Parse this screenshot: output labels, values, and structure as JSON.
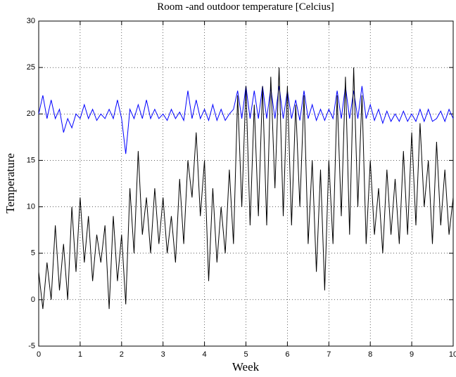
{
  "chart_data": {
    "type": "line",
    "title": "Room -and outdoor temperature [Celcius]",
    "x_label": "Week",
    "y_label": "Temperature",
    "x": [
      0,
      0.1,
      0.2,
      0.3,
      0.4,
      0.5,
      0.6,
      0.7,
      0.8,
      0.9,
      1,
      1.1,
      1.2,
      1.3,
      1.4,
      1.5,
      1.6,
      1.7,
      1.8,
      1.9,
      2,
      2.1,
      2.2,
      2.3,
      2.4,
      2.5,
      2.6,
      2.7,
      2.8,
      2.9,
      3,
      3.1,
      3.2,
      3.3,
      3.4,
      3.5,
      3.6,
      3.7,
      3.8,
      3.9,
      4,
      4.1,
      4.2,
      4.3,
      4.4,
      4.5,
      4.6,
      4.7,
      4.8,
      4.9,
      5,
      5.1,
      5.2,
      5.3,
      5.4,
      5.5,
      5.6,
      5.7,
      5.8,
      5.9,
      6,
      6.1,
      6.2,
      6.3,
      6.4,
      6.5,
      6.6,
      6.7,
      6.8,
      6.9,
      7,
      7.1,
      7.2,
      7.3,
      7.4,
      7.5,
      7.6,
      7.7,
      7.8,
      7.9,
      8,
      8.1,
      8.2,
      8.3,
      8.4,
      8.5,
      8.6,
      8.7,
      8.8,
      8.9,
      9,
      9.1,
      9.2,
      9.3,
      9.4,
      9.5,
      9.6,
      9.7,
      9.8,
      9.9,
      10
    ],
    "series": [
      {
        "color": "#0000ff",
        "values": [
          20,
          22,
          19.5,
          21.5,
          19.5,
          20.5,
          18,
          19.5,
          18.5,
          20,
          19.5,
          21,
          19.5,
          20.5,
          19.3,
          20,
          19.5,
          20.5,
          19.5,
          21.5,
          19.5,
          15.7,
          20.5,
          19.5,
          21,
          19.5,
          21.5,
          19.5,
          20.5,
          19.5,
          20,
          19.3,
          20.5,
          19.5,
          20.2,
          19.3,
          22.5,
          19.5,
          21.5,
          19.5,
          20.5,
          19.3,
          21,
          19.3,
          20.5,
          19.3,
          20,
          20.5,
          22.5,
          19.5,
          23,
          19.5,
          22.5,
          19.5,
          23,
          19.5,
          22.8,
          19.5,
          23,
          19.5,
          22.5,
          19.5,
          21.5,
          19.3,
          22.5,
          19.5,
          21,
          19.3,
          20.5,
          19.3,
          20.5,
          19.5,
          22.5,
          19.5,
          23,
          19.5,
          22.5,
          19.5,
          23,
          19.5,
          21,
          19.3,
          20.5,
          19,
          20.3,
          19.2,
          20,
          19.2,
          20.3,
          19.2,
          20,
          19.2,
          20.5,
          19.2,
          20.5,
          19.2,
          19.5,
          20.3,
          19.2,
          20.5,
          19.5
        ]
      },
      {
        "color": "#000000",
        "values": [
          3,
          -1,
          4,
          0,
          8,
          1,
          6,
          0,
          10,
          3,
          11,
          4,
          9,
          2,
          7,
          4,
          8,
          -1,
          9,
          2,
          7,
          -0.5,
          12,
          5,
          16,
          7,
          11,
          5,
          12,
          6,
          11,
          5,
          9,
          4,
          13,
          6,
          15,
          11,
          18,
          9,
          15,
          2,
          12,
          4,
          10,
          5,
          14,
          6,
          22,
          10,
          23,
          8,
          21,
          9,
          23,
          8,
          24,
          12,
          25,
          9,
          23,
          8,
          21,
          10,
          22,
          6,
          15,
          3,
          14,
          1,
          15,
          6,
          22,
          9,
          24,
          7,
          25,
          10,
          22,
          6,
          15,
          7,
          12,
          5,
          14,
          7,
          13,
          6,
          16,
          7,
          18,
          8,
          19,
          10,
          15,
          6,
          17,
          8,
          14,
          7,
          11
        ]
      }
    ],
    "xlim": [
      0,
      10
    ],
    "ylim": [
      -5,
      30
    ],
    "xticks": [
      0,
      1,
      2,
      3,
      4,
      5,
      6,
      7,
      8,
      9,
      10
    ],
    "yticks": [
      -5,
      0,
      5,
      10,
      15,
      20,
      25,
      30
    ],
    "grid": true
  }
}
